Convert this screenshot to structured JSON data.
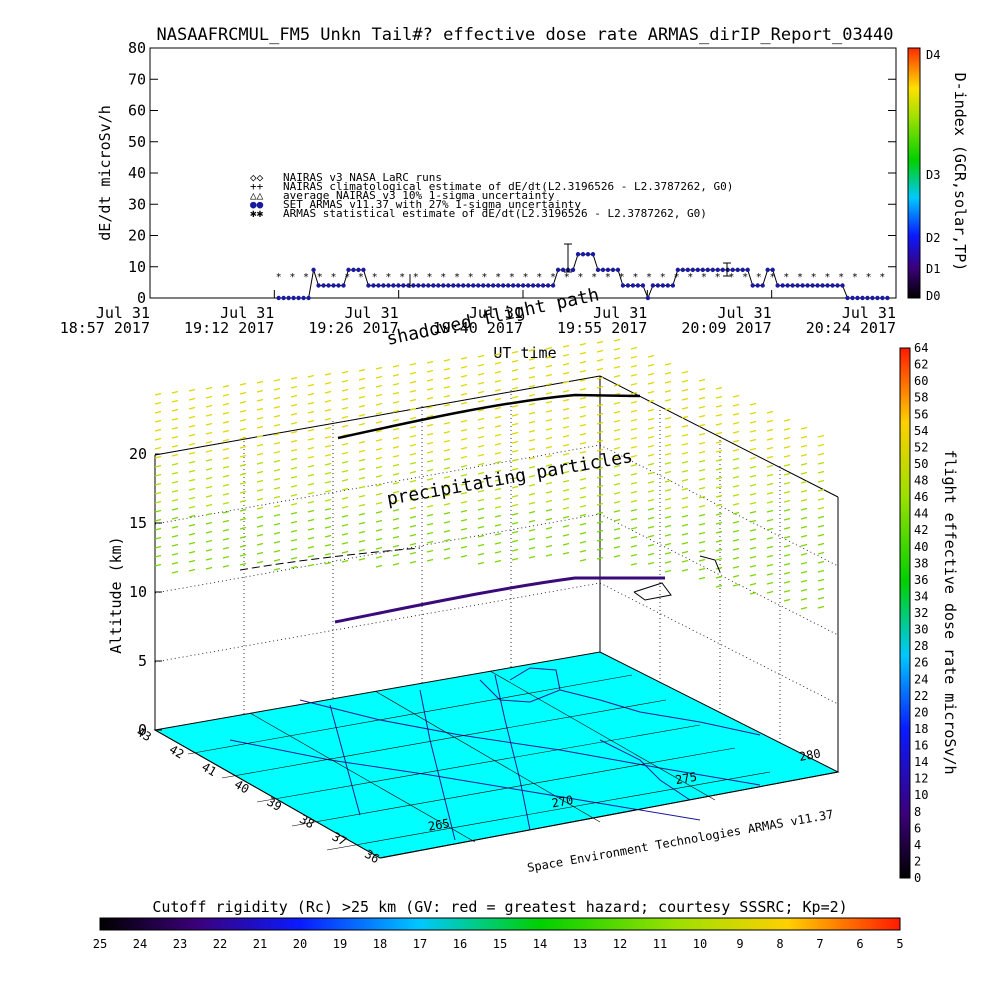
{
  "title": "NASAAFRCMUL_FM5 Unkn Tail#? effective dose rate ARMAS_dirIP_Report_03440",
  "chart_data": [
    {
      "type": "line",
      "ylabel": "dE/dt microSv/h",
      "xlabel": "UT time",
      "ylim": [
        0,
        80
      ],
      "yticks": [
        "0",
        "10",
        "20",
        "30",
        "40",
        "50",
        "60",
        "70",
        "80"
      ],
      "xticks": [
        {
          "top": "Jul 31",
          "bottom": "18:57 2017"
        },
        {
          "top": "Jul 31",
          "bottom": "19:12 2017"
        },
        {
          "top": "Jul 31",
          "bottom": "19:26 2017"
        },
        {
          "top": "Jul 31",
          "bottom": "19:40 2017"
        },
        {
          "top": "Jul 31",
          "bottom": "19:55 2017"
        },
        {
          "top": "Jul 31",
          "bottom": "20:09 2017"
        },
        {
          "top": "Jul 31",
          "bottom": "20:24 2017"
        }
      ],
      "legend": [
        {
          "symbol": "◇◇",
          "text": "NAIRAS v3 NASA LaRC runs"
        },
        {
          "symbol": "++",
          "text": "NAIRAS climatological estimate of dE/dt(L2.3196526 - L2.3787262, G0)"
        },
        {
          "symbol": "△△",
          "text": "average NAIRAS v3 10% 1-sigma uncertainty"
        },
        {
          "symbol": "●●",
          "text": "SET ARMAS v11.37 with 27% 1-sigma uncertainty"
        },
        {
          "symbol": "✱✱",
          "text": "ARMAS statistical estimate of dE/dt(L2.3196526 - L2.3787262, G0)"
        }
      ],
      "legend_placement": "center-left",
      "right_colorbar": {
        "label": "D-index (GCR,solar,TP)",
        "ticks": [
          "D4",
          "D3",
          "D2",
          "D1",
          "D0"
        ]
      },
      "series": [
        {
          "name": "SET ARMAS v11.37 with 27% 1-sigma uncertainty",
          "color": "#1a1aa0",
          "x_minutes_from": "18:57",
          "x_range_min": [
            15,
            86
          ],
          "values": [
            0,
            0,
            0,
            0,
            0,
            0,
            0,
            9,
            4,
            4,
            4,
            4,
            4,
            4,
            9,
            9,
            9,
            9,
            4,
            4,
            4,
            4,
            4,
            4,
            4,
            4,
            4,
            4,
            4,
            4,
            4,
            4,
            4,
            4,
            4,
            4,
            4,
            4,
            4,
            4,
            4,
            4,
            4,
            4,
            4,
            4,
            4,
            4,
            4,
            4,
            4,
            4,
            4,
            4,
            4,
            4,
            9,
            9,
            9,
            9,
            14,
            14,
            14,
            14,
            9,
            9,
            9,
            9,
            9,
            4,
            4,
            4,
            4,
            4,
            0,
            4,
            4,
            4,
            4,
            4,
            9,
            9,
            9,
            9,
            9,
            9,
            9,
            9,
            9,
            9,
            9,
            9,
            9,
            9,
            9,
            4,
            4,
            4,
            9,
            9,
            4,
            4,
            4,
            4,
            4,
            4,
            4,
            4,
            4,
            4,
            4,
            4,
            4,
            4,
            0,
            0,
            0,
            0,
            0,
            0,
            0,
            0,
            0
          ]
        },
        {
          "name": "ARMAS statistical estimate of dE/dt(L2.3196526 - L2.3787262, G0)",
          "color": "#000000",
          "value": 7
        }
      ]
    },
    {
      "type": "scatter",
      "annotations": [
        "shadowed flight path",
        "precipitating particles"
      ],
      "zlabel": "Altitude (km)",
      "zticks": [
        "0",
        "5",
        "10",
        "15",
        "20"
      ],
      "lat_ticks": [
        "43",
        "42",
        "41",
        "40",
        "39",
        "38",
        "37",
        "36"
      ],
      "lon_ticks": [
        "265",
        "270",
        "275",
        "280"
      ],
      "right_colorbar": {
        "label": "flight effective dose rate microSv/h",
        "range": [
          0,
          64
        ],
        "ticks": [
          "0",
          "2",
          "4",
          "6",
          "8",
          "10",
          "12",
          "14",
          "16",
          "18",
          "20",
          "22",
          "24",
          "26",
          "28",
          "30",
          "32",
          "34",
          "36",
          "38",
          "40",
          "42",
          "44",
          "46",
          "48",
          "50",
          "52",
          "54",
          "56",
          "58",
          "60",
          "62",
          "64"
        ]
      },
      "credit": "Space Environment Technologies ARMAS v11.37"
    }
  ],
  "bottom_colorbar": {
    "label": "Cutoff rigidity (Rc) >25 km (GV: red = greatest hazard; courtesy SSSRC; Kp=2)",
    "ticks": [
      "25",
      "24",
      "23",
      "22",
      "21",
      "20",
      "19",
      "18",
      "17",
      "16",
      "15",
      "14",
      "13",
      "12",
      "11",
      "10",
      "9",
      "8",
      "7",
      "6",
      "5"
    ]
  }
}
